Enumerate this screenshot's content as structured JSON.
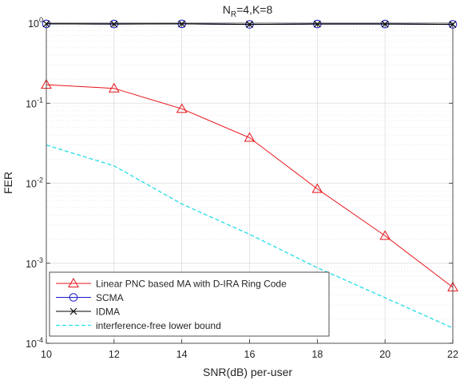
{
  "chart_data": {
    "type": "line",
    "title": "N_R=4,K=8",
    "title_parts": {
      "main": "N",
      "sub": "R",
      "rest": "=4,K=8"
    },
    "xlabel": "SNR(dB) per-user",
    "ylabel": "FER",
    "x": [
      10,
      12,
      14,
      16,
      18,
      20,
      22
    ],
    "xlim": [
      10,
      22
    ],
    "ylim": [
      0.0001,
      1
    ],
    "yscale": "log",
    "grid": true,
    "legend_position": "bottom-left",
    "xticks": [
      "10",
      "12",
      "14",
      "16",
      "18",
      "20",
      "22"
    ],
    "yticks": [
      {
        "base": "10",
        "exp": "-4"
      },
      {
        "base": "10",
        "exp": "-3"
      },
      {
        "base": "10",
        "exp": "-2"
      },
      {
        "base": "10",
        "exp": "-1"
      },
      {
        "base": "10",
        "exp": "0"
      }
    ],
    "series": [
      {
        "name": "Linear PNC based MA with D-IRA Ring Code",
        "color": "#e8141a",
        "marker": "triangle",
        "line": "solid",
        "x": [
          10,
          12,
          14,
          16,
          18,
          20,
          22
        ],
        "y": [
          0.17,
          0.153,
          0.085,
          0.037,
          0.0085,
          0.0022,
          0.0005
        ]
      },
      {
        "name": "SCMA",
        "color": "#1a1acc",
        "marker": "circle",
        "line": "solid",
        "x": [
          10,
          12,
          14,
          16,
          18,
          20,
          22
        ],
        "y": [
          0.98,
          0.975,
          0.98,
          0.965,
          0.975,
          0.975,
          0.965
        ]
      },
      {
        "name": "IDMA",
        "color": "#000000",
        "marker": "x",
        "line": "solid",
        "x": [
          10,
          12,
          14,
          16,
          18,
          20,
          22
        ],
        "y": [
          0.98,
          0.975,
          0.98,
          0.965,
          0.975,
          0.975,
          0.965
        ]
      },
      {
        "name": "interference-free lower bound",
        "color": "#22dde6",
        "marker": "none",
        "line": "dashed",
        "x": [
          10,
          12,
          14,
          16,
          18,
          20,
          22
        ],
        "y": [
          0.03,
          0.0165,
          0.0055,
          0.0023,
          0.00088,
          0.00037,
          0.000155
        ]
      }
    ]
  }
}
